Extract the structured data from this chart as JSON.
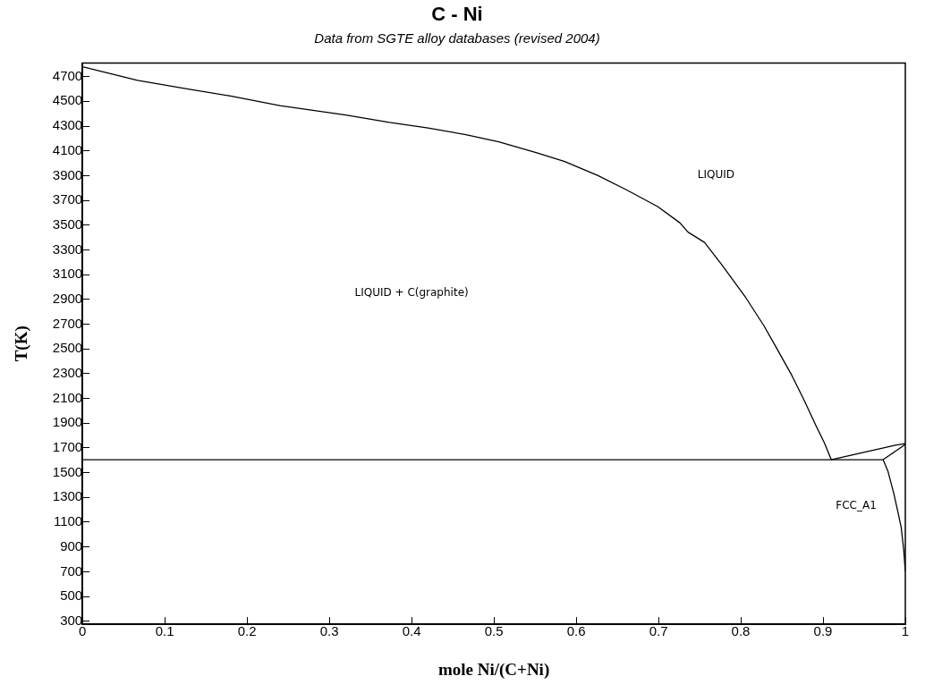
{
  "chart_data": {
    "type": "line",
    "title": "C - Ni",
    "subtitle": "Data from SGTE alloy databases (revised 2004)",
    "xlabel": "mole Ni/(C+Ni)",
    "ylabel": "T(K)",
    "xlim": [
      0,
      1
    ],
    "ylim": [
      275,
      4810
    ],
    "xticks": [
      0,
      0.1,
      0.2,
      0.3,
      0.4,
      0.5,
      0.6,
      0.7,
      0.8,
      0.9,
      1
    ],
    "yticks": [
      300,
      500,
      700,
      900,
      1100,
      1300,
      1500,
      1700,
      1900,
      2100,
      2300,
      2500,
      2700,
      2900,
      3100,
      3300,
      3500,
      3700,
      3900,
      4100,
      4300,
      4500,
      4700
    ],
    "grid": false,
    "legend": false,
    "marker": "none",
    "line_style": "solid",
    "series": [
      {
        "color": "#000000",
        "x": [
          0,
          0.067,
          0.127,
          0.18,
          0.24,
          0.32,
          0.373,
          0.42,
          0.466,
          0.506,
          0.553,
          0.586,
          0.626,
          0.66,
          0.699,
          0.726,
          0.736,
          0.756,
          0.777,
          0.806,
          0.828,
          0.843,
          0.862,
          0.877,
          0.891,
          0.902,
          0.91
        ],
        "values": [
          4780,
          4669,
          4601,
          4543,
          4466,
          4389,
          4330,
          4285,
          4231,
          4173,
          4082,
          4014,
          3902,
          3789,
          3650,
          3519,
          3443,
          3360,
          3179,
          2915,
          2689,
          2513,
          2287,
          2086,
          1886,
          1735,
          1605
        ]
      },
      {
        "color": "#000000",
        "x": [
          0,
          0.973
        ],
        "values": [
          1605,
          1605
        ]
      },
      {
        "color": "#000000",
        "x": [
          0.91,
          0.988,
          1
        ],
        "values": [
          1605,
          1722,
          1735
        ]
      },
      {
        "color": "#000000",
        "x": [
          0.973,
          1
        ],
        "values": [
          1605,
          1728
        ]
      },
      {
        "color": "#000000",
        "x": [
          0.973,
          0.979,
          0.986,
          0.991,
          0.995,
          0.998,
          1
        ],
        "values": [
          1605,
          1509,
          1332,
          1182,
          1057,
          880,
          700
        ]
      }
    ],
    "annotations": [
      "LIQUID",
      "LIQUID + C(graphite)",
      "FCC_A1"
    ]
  }
}
